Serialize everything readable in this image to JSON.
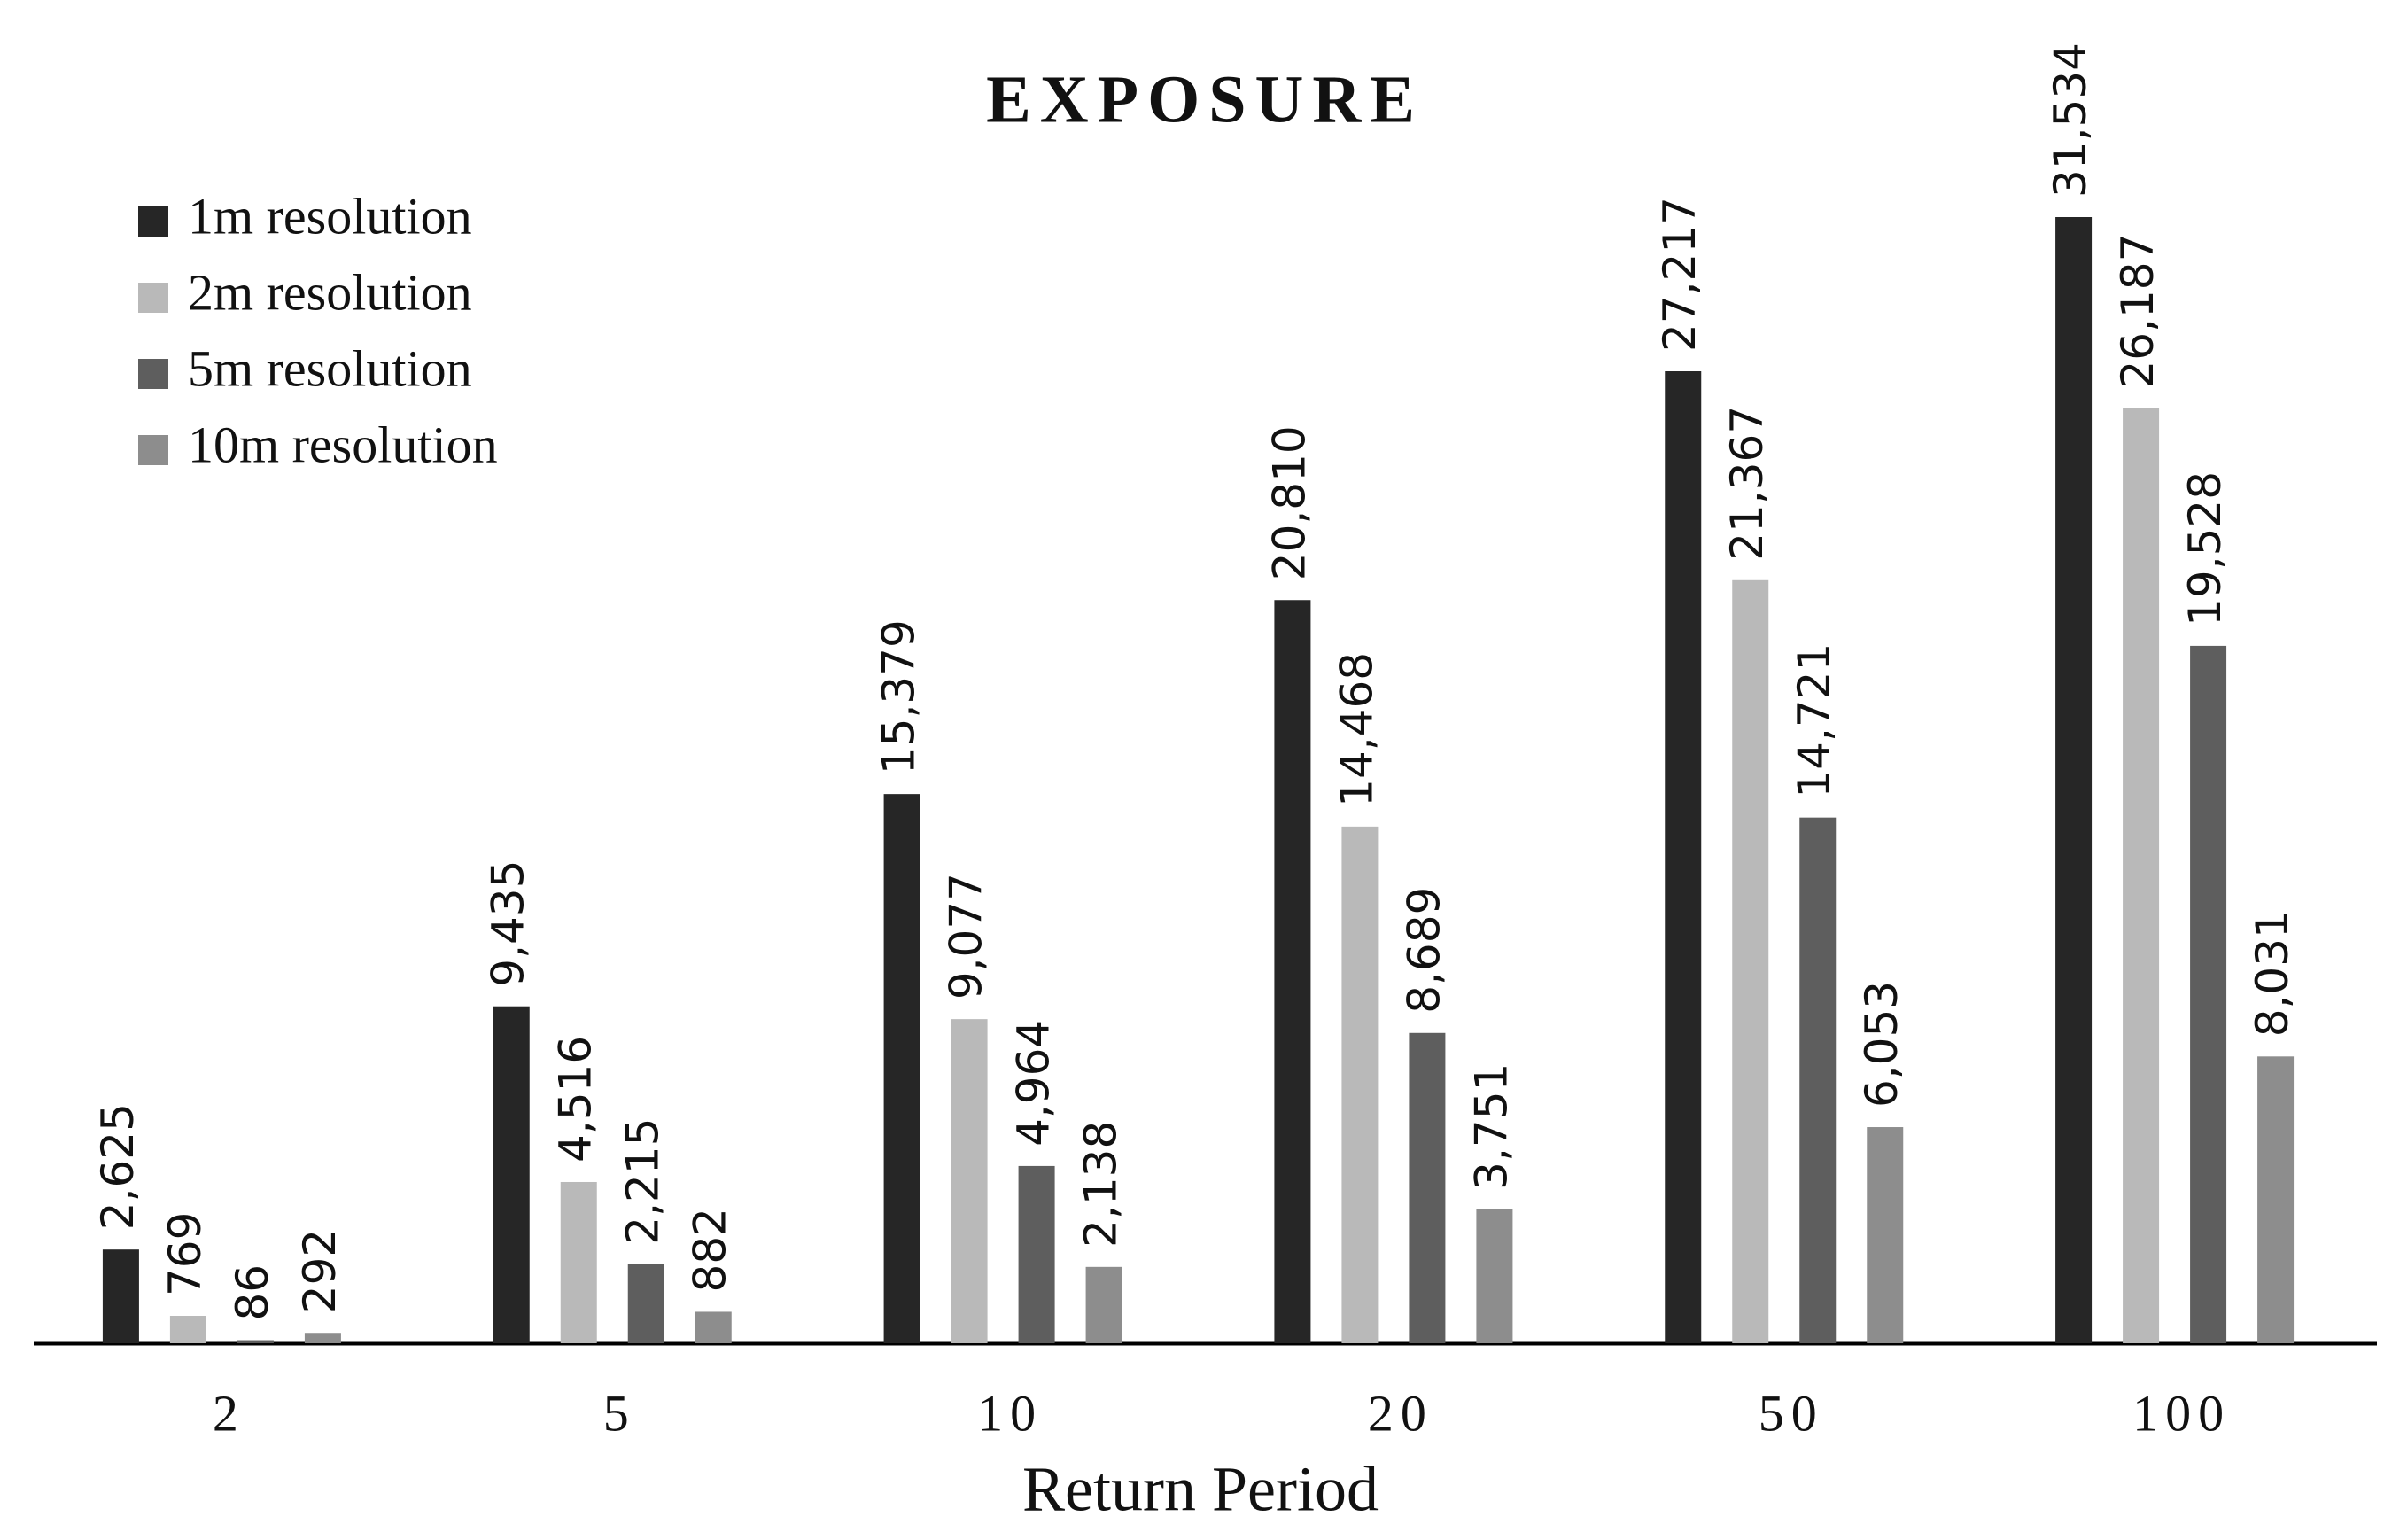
{
  "chart_data": {
    "type": "bar",
    "title": "EXPOSURE",
    "x_label": "Return Period",
    "categories": [
      "2",
      "5",
      "10",
      "20",
      "50",
      "100"
    ],
    "legend": "upper left",
    "series": [
      {
        "name": "1m resolution",
        "color": "#262626",
        "values": [
          2625,
          9435,
          15379,
          20810,
          27217,
          31534
        ],
        "value_labels": [
          "2,625",
          "9,435",
          "15,379",
          "20,810",
          "27,217",
          "31,534"
        ]
      },
      {
        "name": "2m resolution",
        "color": "#b9b9b9",
        "values": [
          769,
          4516,
          9077,
          14468,
          21367,
          26187
        ],
        "value_labels": [
          "769",
          "4,516",
          "9,077",
          "14,468",
          "21,367",
          "26,187"
        ]
      },
      {
        "name": "5m resolution",
        "color": "#5e5e5e",
        "values": [
          86,
          2215,
          4964,
          8689,
          14721,
          19528
        ],
        "value_labels": [
          "86",
          "2,215",
          "4,964",
          "8,689",
          "14,721",
          "19,528"
        ]
      },
      {
        "name": "10m resolution",
        "color": "#8d8d8d",
        "values": [
          292,
          882,
          2138,
          3751,
          6053,
          8031
        ],
        "value_labels": [
          "292",
          "882",
          "2,138",
          "3,751",
          "6,053",
          "8,031"
        ]
      }
    ]
  }
}
